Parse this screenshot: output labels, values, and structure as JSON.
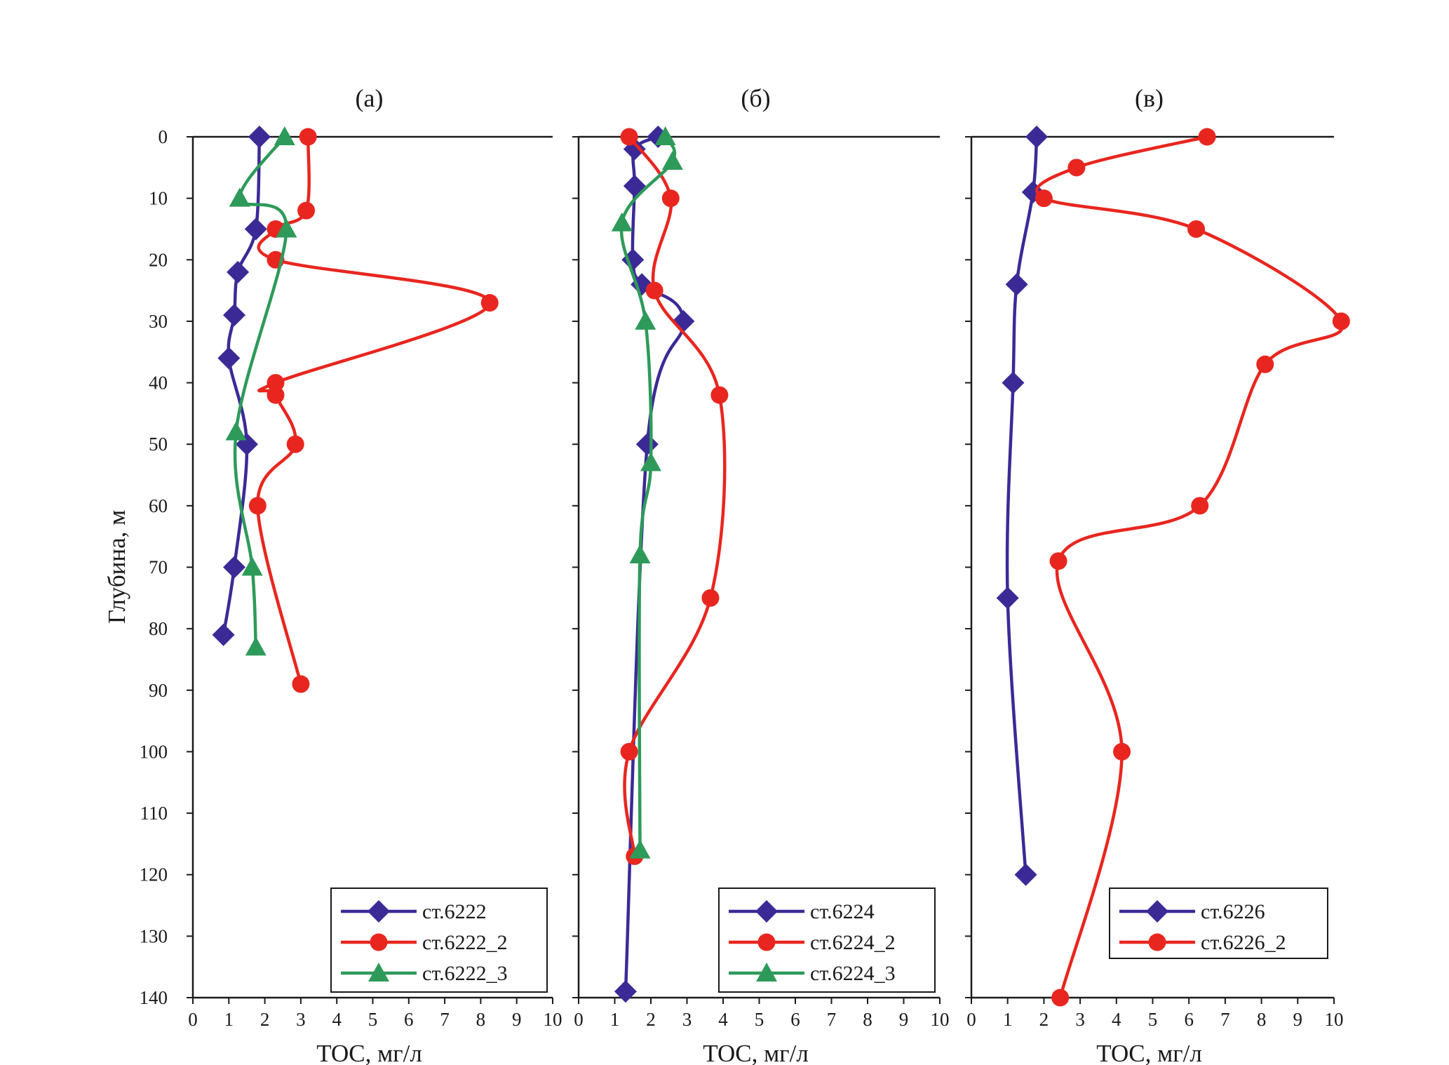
{
  "colors": {
    "blue": "#3b2a96",
    "red": "#e8261f",
    "green": "#2e9a5a"
  },
  "y_axis_label": "Глубина, м",
  "chart_data": [
    {
      "type": "line",
      "title": "(а)",
      "xlabel": "TOC, мг/л",
      "ylabel": "Глубина, м",
      "xlim": [
        0,
        10
      ],
      "ylim": [
        0,
        140
      ],
      "y_inverted": true,
      "xticks": [
        "0",
        "1",
        "2",
        "3",
        "4",
        "5",
        "6",
        "7",
        "8",
        "9",
        "10"
      ],
      "yticks": [
        "0",
        "10",
        "20",
        "30",
        "40",
        "50",
        "60",
        "70",
        "80",
        "90",
        "100",
        "110",
        "120",
        "130",
        "140"
      ],
      "legend_position": "bottom-right",
      "series": [
        {
          "name": "ст.6222",
          "color": "#3b2a96",
          "marker": "diamond",
          "points": [
            [
              1.85,
              0
            ],
            [
              1.75,
              15
            ],
            [
              1.25,
              22
            ],
            [
              1.15,
              29
            ],
            [
              1.0,
              36
            ],
            [
              1.5,
              50
            ],
            [
              1.15,
              70
            ],
            [
              0.85,
              81
            ]
          ]
        },
        {
          "name": "ст.6222_2",
          "color": "#e8261f",
          "marker": "circle",
          "points": [
            [
              3.2,
              0
            ],
            [
              3.15,
              12
            ],
            [
              2.3,
              15
            ],
            [
              2.3,
              20
            ],
            [
              8.25,
              27
            ],
            [
              2.3,
              40
            ],
            [
              2.3,
              42
            ],
            [
              2.85,
              50
            ],
            [
              1.8,
              60
            ],
            [
              3.0,
              89
            ]
          ]
        },
        {
          "name": "ст.6222_3",
          "color": "#2e9a5a",
          "marker": "triangle",
          "points": [
            [
              2.55,
              0
            ],
            [
              1.3,
              10
            ],
            [
              2.6,
              15
            ],
            [
              1.2,
              48
            ],
            [
              1.65,
              70
            ],
            [
              1.75,
              83
            ]
          ]
        }
      ]
    },
    {
      "type": "line",
      "title": "(б)",
      "xlabel": "TOC, мг/л",
      "ylabel": "",
      "xlim": [
        0,
        10
      ],
      "ylim": [
        0,
        140
      ],
      "y_inverted": true,
      "xticks": [
        "0",
        "1",
        "2",
        "3",
        "4",
        "5",
        "6",
        "7",
        "8",
        "9",
        "10"
      ],
      "legend_position": "bottom-right",
      "series": [
        {
          "name": "ст.6224",
          "color": "#3b2a96",
          "marker": "diamond",
          "points": [
            [
              2.2,
              0
            ],
            [
              1.55,
              2
            ],
            [
              1.55,
              8
            ],
            [
              1.5,
              20
            ],
            [
              1.75,
              24
            ],
            [
              2.9,
              30
            ],
            [
              1.9,
              50
            ],
            [
              1.3,
              139
            ]
          ]
        },
        {
          "name": "ст.6224_2",
          "color": "#e8261f",
          "marker": "circle",
          "points": [
            [
              1.4,
              0
            ],
            [
              2.55,
              10
            ],
            [
              2.1,
              25
            ],
            [
              3.9,
              42
            ],
            [
              3.65,
              75
            ],
            [
              1.4,
              100
            ],
            [
              1.55,
              117
            ]
          ]
        },
        {
          "name": "ст.6224_3",
          "color": "#2e9a5a",
          "marker": "triangle",
          "points": [
            [
              2.4,
              0
            ],
            [
              2.6,
              4
            ],
            [
              1.2,
              14
            ],
            [
              1.85,
              30
            ],
            [
              2.0,
              53
            ],
            [
              1.7,
              68
            ],
            [
              1.7,
              116
            ]
          ]
        }
      ]
    },
    {
      "type": "line",
      "title": "(в)",
      "xlabel": "TOC, мг/л",
      "ylabel": "",
      "xlim": [
        0,
        10
      ],
      "ylim": [
        0,
        140
      ],
      "y_inverted": true,
      "xticks": [
        "0",
        "1",
        "2",
        "3",
        "4",
        "5",
        "6",
        "7",
        "8",
        "9",
        "10"
      ],
      "legend_position": "bottom-right",
      "series": [
        {
          "name": "ст.6226",
          "color": "#3b2a96",
          "marker": "diamond",
          "points": [
            [
              1.8,
              0
            ],
            [
              1.7,
              9
            ],
            [
              1.25,
              24
            ],
            [
              1.15,
              40
            ],
            [
              1.0,
              75
            ],
            [
              1.5,
              120
            ]
          ]
        },
        {
          "name": "ст.6226_2",
          "color": "#e8261f",
          "marker": "circle",
          "points": [
            [
              6.5,
              0
            ],
            [
              2.9,
              5
            ],
            [
              2.0,
              10
            ],
            [
              6.2,
              15
            ],
            [
              10.2,
              30
            ],
            [
              8.1,
              37
            ],
            [
              6.3,
              60
            ],
            [
              2.4,
              69
            ],
            [
              4.15,
              100
            ],
            [
              2.45,
              140
            ]
          ]
        }
      ]
    }
  ]
}
